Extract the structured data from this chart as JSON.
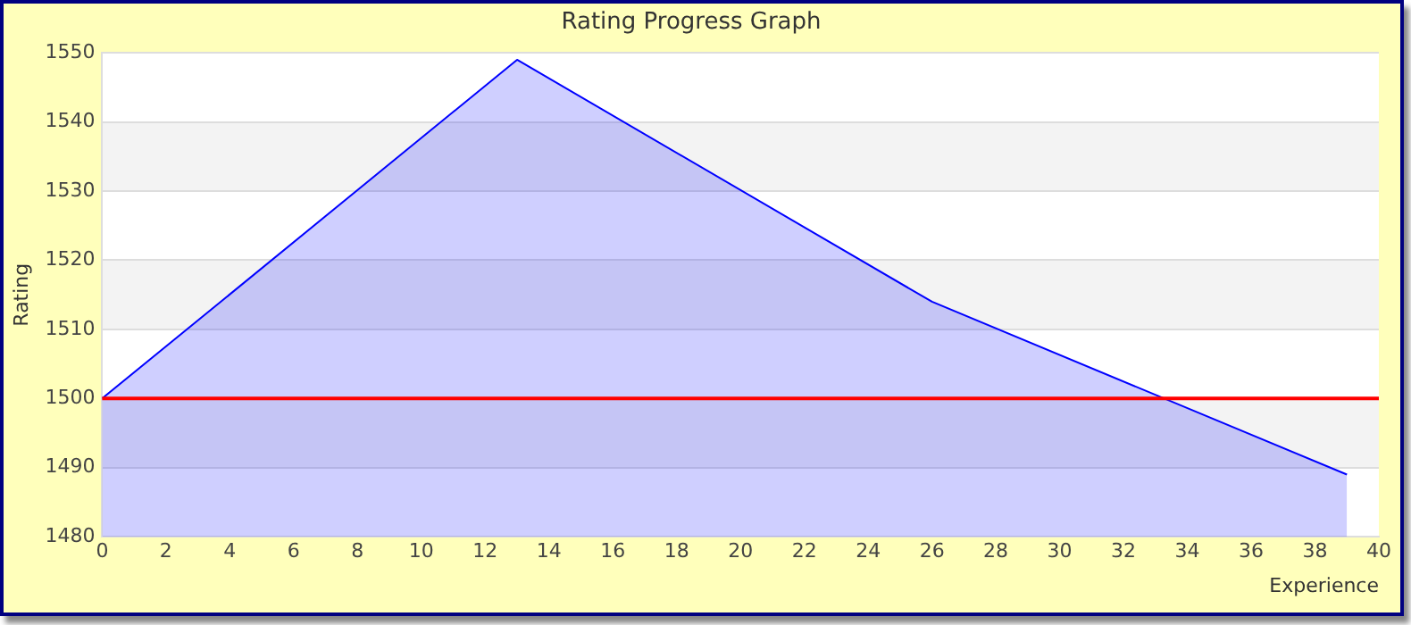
{
  "chart_data": {
    "type": "area",
    "title": "Rating Progress Graph",
    "xlabel": "Experience",
    "ylabel": "Rating",
    "x": [
      0,
      13,
      26,
      39
    ],
    "series": [
      {
        "color": "#0000ff",
        "values": [
          1500,
          1549,
          1514,
          1489
        ]
      }
    ],
    "xlim": [
      0,
      40
    ],
    "xticks": [
      0,
      2,
      4,
      6,
      8,
      10,
      12,
      14,
      16,
      18,
      20,
      22,
      24,
      26,
      28,
      30,
      32,
      34,
      36,
      38,
      40
    ],
    "ylim": [
      1480,
      1550
    ],
    "yticks": [
      1480,
      1490,
      1500,
      1510,
      1520,
      1530,
      1540,
      1550
    ],
    "ref_lines": [
      {
        "axis": "y",
        "value": 1500,
        "color": "#ff0000"
      }
    ],
    "grid": "y",
    "legend": false,
    "marker": "none"
  }
}
